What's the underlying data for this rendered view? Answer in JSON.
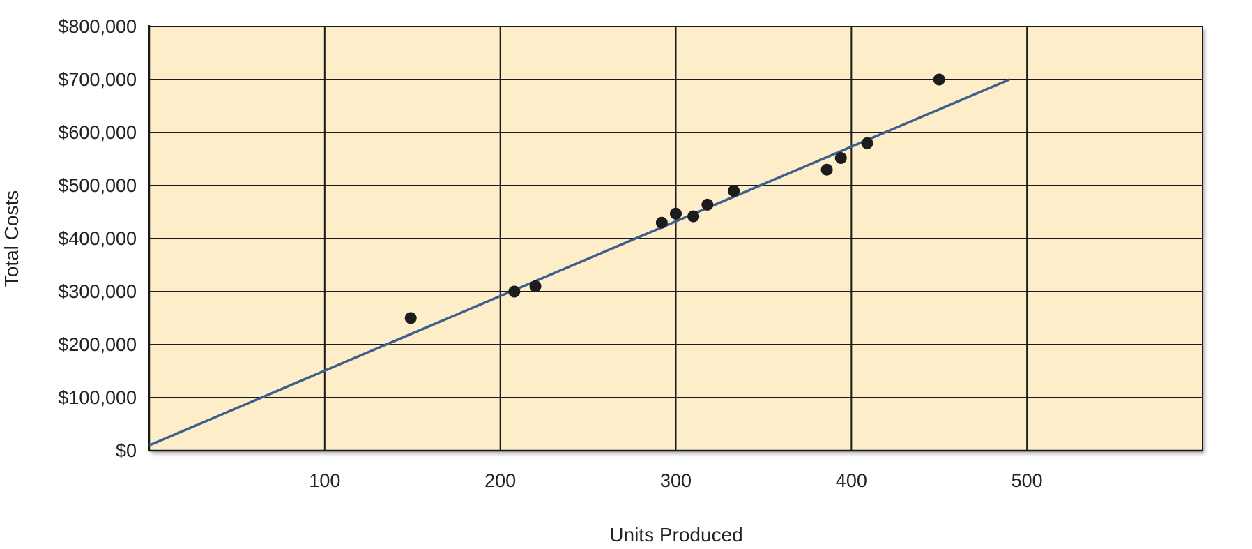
{
  "chart_data": {
    "type": "scatter",
    "xlabel": "Units Produced",
    "ylabel": "Total Costs",
    "xlim": [
      0,
      600
    ],
    "ylim": [
      0,
      800000
    ],
    "x_ticks": [
      100,
      200,
      300,
      400,
      500
    ],
    "x_tick_labels": [
      "100",
      "200",
      "300",
      "400",
      "500"
    ],
    "y_ticks": [
      0,
      100000,
      200000,
      300000,
      400000,
      500000,
      600000,
      700000,
      800000
    ],
    "y_tick_labels": [
      "$0",
      "$100,000",
      "$200,000",
      "$300,000",
      "$400,000",
      "$500,000",
      "$600,000",
      "$700,000",
      "$800,000"
    ],
    "grid": true,
    "points": [
      {
        "x": 149,
        "y": 250000
      },
      {
        "x": 208,
        "y": 300000
      },
      {
        "x": 220,
        "y": 310000
      },
      {
        "x": 292,
        "y": 430000
      },
      {
        "x": 300,
        "y": 447000
      },
      {
        "x": 310,
        "y": 442000
      },
      {
        "x": 318,
        "y": 464000
      },
      {
        "x": 333,
        "y": 490000
      },
      {
        "x": 386,
        "y": 530000
      },
      {
        "x": 394,
        "y": 552000
      },
      {
        "x": 409,
        "y": 580000
      },
      {
        "x": 450,
        "y": 700000
      }
    ],
    "trend_line": {
      "x": [
        0,
        490
      ],
      "y": [
        10000,
        700000
      ]
    },
    "colors": {
      "plot_background": "#fdedc9",
      "grid": "#1a1a1a",
      "points": "#1c1c1c",
      "trend_line": "#3d5f8e"
    }
  }
}
